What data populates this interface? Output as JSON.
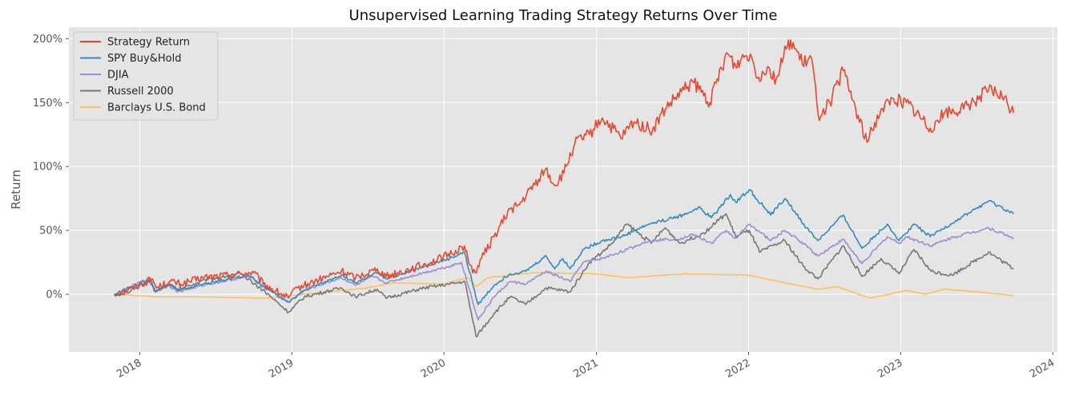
{
  "chart_data": {
    "type": "line",
    "title": "Unsupervised Learning Trading Strategy Returns Over Time",
    "xlabel": "",
    "ylabel": "Return",
    "xlim": [
      "2017-07-15",
      "2024-01-12"
    ],
    "ylim": [
      -0.45,
      2.09
    ],
    "grid": true,
    "style": "ggplot",
    "legend_position": "top-left",
    "x_ticks": [
      "2018-01-01",
      "2019-01-01",
      "2020-01-01",
      "2021-01-01",
      "2022-01-01",
      "2023-01-01",
      "2024-01-01"
    ],
    "x_tick_labels": [
      "2018",
      "2019",
      "2020",
      "2021",
      "2022",
      "2023",
      "2024"
    ],
    "y_ticks": [
      0,
      0.5,
      1.0,
      1.5,
      2.0
    ],
    "y_tick_labels": [
      "0%",
      "50%",
      "100%",
      "150%",
      "200%"
    ],
    "series": [
      {
        "name": "Strategy Return",
        "color": "#E24A33",
        "points": [
          [
            "2017-11-01",
            0.0
          ],
          [
            "2017-12-15",
            0.05
          ],
          [
            "2018-02-01",
            0.12
          ],
          [
            "2018-02-10",
            0.05
          ],
          [
            "2018-03-15",
            0.1
          ],
          [
            "2018-04-10",
            0.08
          ],
          [
            "2018-06-01",
            0.13
          ],
          [
            "2018-08-01",
            0.15
          ],
          [
            "2018-10-01",
            0.17
          ],
          [
            "2018-10-25",
            0.08
          ],
          [
            "2018-12-24",
            -0.03
          ],
          [
            "2019-01-15",
            0.05
          ],
          [
            "2019-04-30",
            0.18
          ],
          [
            "2019-06-03",
            0.13
          ],
          [
            "2019-07-25",
            0.2
          ],
          [
            "2019-08-15",
            0.14
          ],
          [
            "2019-10-15",
            0.2
          ],
          [
            "2019-12-01",
            0.25
          ],
          [
            "2020-01-20",
            0.32
          ],
          [
            "2020-02-19",
            0.38
          ],
          [
            "2020-03-01",
            0.24
          ],
          [
            "2020-03-16",
            0.17
          ],
          [
            "2020-03-31",
            0.28
          ],
          [
            "2020-04-30",
            0.45
          ],
          [
            "2020-06-08",
            0.67
          ],
          [
            "2020-06-30",
            0.7
          ],
          [
            "2020-08-15",
            0.9
          ],
          [
            "2020-09-01",
            0.98
          ],
          [
            "2020-09-23",
            0.85
          ],
          [
            "2020-10-15",
            0.95
          ],
          [
            "2020-11-10",
            1.18
          ],
          [
            "2020-12-15",
            1.25
          ],
          [
            "2021-01-15",
            1.38
          ],
          [
            "2021-03-01",
            1.22
          ],
          [
            "2021-04-01",
            1.35
          ],
          [
            "2021-05-15",
            1.28
          ],
          [
            "2021-06-15",
            1.45
          ],
          [
            "2021-07-30",
            1.6
          ],
          [
            "2021-08-20",
            1.66
          ],
          [
            "2021-09-30",
            1.5
          ],
          [
            "2021-11-10",
            1.89
          ],
          [
            "2021-12-01",
            1.78
          ],
          [
            "2021-12-15",
            1.85
          ],
          [
            "2022-01-05",
            1.88
          ],
          [
            "2022-01-25",
            1.7
          ],
          [
            "2022-02-15",
            1.78
          ],
          [
            "2022-03-08",
            1.68
          ],
          [
            "2022-04-01",
            1.92
          ],
          [
            "2022-04-12",
            1.99
          ],
          [
            "2022-05-10",
            1.8
          ],
          [
            "2022-06-01",
            1.85
          ],
          [
            "2022-06-17",
            1.4
          ],
          [
            "2022-07-15",
            1.5
          ],
          [
            "2022-08-16",
            1.75
          ],
          [
            "2022-09-15",
            1.45
          ],
          [
            "2022-10-12",
            1.19
          ],
          [
            "2022-11-15",
            1.45
          ],
          [
            "2022-12-15",
            1.53
          ],
          [
            "2023-01-15",
            1.5
          ],
          [
            "2023-03-13",
            1.3
          ],
          [
            "2023-04-15",
            1.42
          ],
          [
            "2023-06-01",
            1.45
          ],
          [
            "2023-07-31",
            1.6
          ],
          [
            "2023-09-01",
            1.55
          ],
          [
            "2023-09-29",
            1.42
          ]
        ]
      },
      {
        "name": "SPY Buy&Hold",
        "color": "#348ABD",
        "points": [
          [
            "2017-11-01",
            0.0
          ],
          [
            "2018-01-26",
            0.12
          ],
          [
            "2018-02-08",
            0.02
          ],
          [
            "2018-03-12",
            0.08
          ],
          [
            "2018-04-02",
            0.03
          ],
          [
            "2018-06-15",
            0.09
          ],
          [
            "2018-09-20",
            0.15
          ],
          [
            "2018-10-29",
            0.05
          ],
          [
            "2018-12-24",
            -0.06
          ],
          [
            "2019-01-31",
            0.03
          ],
          [
            "2019-04-30",
            0.15
          ],
          [
            "2019-06-03",
            0.09
          ],
          [
            "2019-07-26",
            0.17
          ],
          [
            "2019-08-15",
            0.12
          ],
          [
            "2019-11-15",
            0.22
          ],
          [
            "2020-01-15",
            0.28
          ],
          [
            "2020-02-19",
            0.33
          ],
          [
            "2020-03-23",
            -0.08
          ],
          [
            "2020-04-30",
            0.07
          ],
          [
            "2020-06-08",
            0.16
          ],
          [
            "2020-07-15",
            0.18
          ],
          [
            "2020-09-02",
            0.3
          ],
          [
            "2020-09-23",
            0.2
          ],
          [
            "2020-10-12",
            0.28
          ],
          [
            "2020-10-30",
            0.2
          ],
          [
            "2020-11-30",
            0.35
          ],
          [
            "2021-01-15",
            0.42
          ],
          [
            "2021-03-01",
            0.45
          ],
          [
            "2021-05-07",
            0.55
          ],
          [
            "2021-07-30",
            0.62
          ],
          [
            "2021-09-02",
            0.68
          ],
          [
            "2021-10-04",
            0.6
          ],
          [
            "2021-11-18",
            0.78
          ],
          [
            "2021-12-01",
            0.72
          ],
          [
            "2022-01-03",
            0.82
          ],
          [
            "2022-02-23",
            0.62
          ],
          [
            "2022-03-29",
            0.75
          ],
          [
            "2022-05-20",
            0.52
          ],
          [
            "2022-06-16",
            0.42
          ],
          [
            "2022-08-16",
            0.62
          ],
          [
            "2022-09-30",
            0.36
          ],
          [
            "2022-11-30",
            0.55
          ],
          [
            "2022-12-28",
            0.42
          ],
          [
            "2023-02-02",
            0.55
          ],
          [
            "2023-03-13",
            0.45
          ],
          [
            "2023-05-01",
            0.55
          ],
          [
            "2023-07-31",
            0.73
          ],
          [
            "2023-09-29",
            0.63
          ]
        ]
      },
      {
        "name": "DJIA",
        "color": "#988ED5",
        "points": [
          [
            "2017-11-01",
            0.0
          ],
          [
            "2018-01-26",
            0.13
          ],
          [
            "2018-02-08",
            0.02
          ],
          [
            "2018-03-12",
            0.07
          ],
          [
            "2018-04-02",
            0.02
          ],
          [
            "2018-06-15",
            0.08
          ],
          [
            "2018-09-20",
            0.14
          ],
          [
            "2018-10-29",
            0.06
          ],
          [
            "2018-12-24",
            -0.06
          ],
          [
            "2019-01-31",
            0.03
          ],
          [
            "2019-04-30",
            0.13
          ],
          [
            "2019-06-03",
            0.07
          ],
          [
            "2019-07-15",
            0.14
          ],
          [
            "2019-08-15",
            0.09
          ],
          [
            "2019-11-15",
            0.17
          ],
          [
            "2020-01-15",
            0.22
          ],
          [
            "2020-02-12",
            0.25
          ],
          [
            "2020-03-23",
            -0.2
          ],
          [
            "2020-04-30",
            -0.02
          ],
          [
            "2020-06-08",
            0.1
          ],
          [
            "2020-07-15",
            0.08
          ],
          [
            "2020-09-02",
            0.18
          ],
          [
            "2020-10-30",
            0.1
          ],
          [
            "2020-11-30",
            0.25
          ],
          [
            "2021-01-15",
            0.28
          ],
          [
            "2021-03-15",
            0.35
          ],
          [
            "2021-05-07",
            0.42
          ],
          [
            "2021-07-30",
            0.44
          ],
          [
            "2021-08-16",
            0.47
          ],
          [
            "2021-10-04",
            0.4
          ],
          [
            "2021-11-08",
            0.5
          ],
          [
            "2021-12-01",
            0.44
          ],
          [
            "2022-01-04",
            0.55
          ],
          [
            "2022-02-23",
            0.42
          ],
          [
            "2022-03-29",
            0.5
          ],
          [
            "2022-05-20",
            0.38
          ],
          [
            "2022-06-16",
            0.3
          ],
          [
            "2022-08-16",
            0.43
          ],
          [
            "2022-09-30",
            0.24
          ],
          [
            "2022-11-30",
            0.45
          ],
          [
            "2022-12-28",
            0.4
          ],
          [
            "2023-01-15",
            0.45
          ],
          [
            "2023-03-15",
            0.38
          ],
          [
            "2023-05-01",
            0.44
          ],
          [
            "2023-07-31",
            0.52
          ],
          [
            "2023-09-29",
            0.44
          ]
        ]
      },
      {
        "name": "Russell 2000",
        "color": "#777777",
        "points": [
          [
            "2017-11-01",
            0.0
          ],
          [
            "2017-11-15",
            -0.01
          ],
          [
            "2018-01-24",
            0.1
          ],
          [
            "2018-02-08",
            0.02
          ],
          [
            "2018-03-12",
            0.08
          ],
          [
            "2018-04-02",
            0.04
          ],
          [
            "2018-06-15",
            0.12
          ],
          [
            "2018-08-31",
            0.16
          ],
          [
            "2018-10-29",
            0.02
          ],
          [
            "2018-12-24",
            -0.14
          ],
          [
            "2019-01-31",
            -0.02
          ],
          [
            "2019-04-30",
            0.05
          ],
          [
            "2019-06-03",
            -0.02
          ],
          [
            "2019-07-25",
            0.04
          ],
          [
            "2019-08-15",
            -0.03
          ],
          [
            "2019-11-15",
            0.05
          ],
          [
            "2020-01-15",
            0.08
          ],
          [
            "2020-02-20",
            0.1
          ],
          [
            "2020-03-18",
            -0.33
          ],
          [
            "2020-04-30",
            -0.15
          ],
          [
            "2020-06-08",
            -0.02
          ],
          [
            "2020-07-15",
            -0.08
          ],
          [
            "2020-09-02",
            0.05
          ],
          [
            "2020-10-30",
            0.02
          ],
          [
            "2020-12-15",
            0.25
          ],
          [
            "2021-01-15",
            0.33
          ],
          [
            "2021-02-08",
            0.4
          ],
          [
            "2021-03-15",
            0.55
          ],
          [
            "2021-05-12",
            0.4
          ],
          [
            "2021-06-15",
            0.52
          ],
          [
            "2021-07-20",
            0.4
          ],
          [
            "2021-09-15",
            0.48
          ],
          [
            "2021-11-08",
            0.63
          ],
          [
            "2021-12-01",
            0.45
          ],
          [
            "2022-01-03",
            0.5
          ],
          [
            "2022-01-27",
            0.33
          ],
          [
            "2022-03-29",
            0.42
          ],
          [
            "2022-05-12",
            0.22
          ],
          [
            "2022-06-16",
            0.12
          ],
          [
            "2022-08-16",
            0.38
          ],
          [
            "2022-09-30",
            0.14
          ],
          [
            "2022-11-15",
            0.28
          ],
          [
            "2022-12-28",
            0.16
          ],
          [
            "2023-02-02",
            0.35
          ],
          [
            "2023-03-15",
            0.18
          ],
          [
            "2023-05-04",
            0.15
          ],
          [
            "2023-07-31",
            0.33
          ],
          [
            "2023-09-29",
            0.2
          ]
        ]
      },
      {
        "name": "Barclays U.S. Bond",
        "color": "#FBC15E",
        "points": [
          [
            "2017-11-01",
            0.0
          ],
          [
            "2018-02-15",
            -0.02
          ],
          [
            "2018-05-15",
            -0.02
          ],
          [
            "2018-10-31",
            -0.03
          ],
          [
            "2018-12-31",
            -0.01
          ],
          [
            "2019-03-31",
            0.02
          ],
          [
            "2019-06-30",
            0.05
          ],
          [
            "2019-09-03",
            0.09
          ],
          [
            "2019-12-31",
            0.08
          ],
          [
            "2020-02-28",
            0.13
          ],
          [
            "2020-03-18",
            0.06
          ],
          [
            "2020-04-15",
            0.13
          ],
          [
            "2020-08-04",
            0.17
          ],
          [
            "2020-12-31",
            0.16
          ],
          [
            "2021-03-15",
            0.13
          ],
          [
            "2021-08-01",
            0.16
          ],
          [
            "2021-12-31",
            0.15
          ],
          [
            "2022-03-15",
            0.1
          ],
          [
            "2022-06-15",
            0.04
          ],
          [
            "2022-08-01",
            0.06
          ],
          [
            "2022-10-20",
            -0.03
          ],
          [
            "2023-01-15",
            0.03
          ],
          [
            "2023-03-01",
            0.0
          ],
          [
            "2023-04-15",
            0.04
          ],
          [
            "2023-06-30",
            0.02
          ],
          [
            "2023-09-29",
            -0.01
          ]
        ]
      }
    ]
  }
}
